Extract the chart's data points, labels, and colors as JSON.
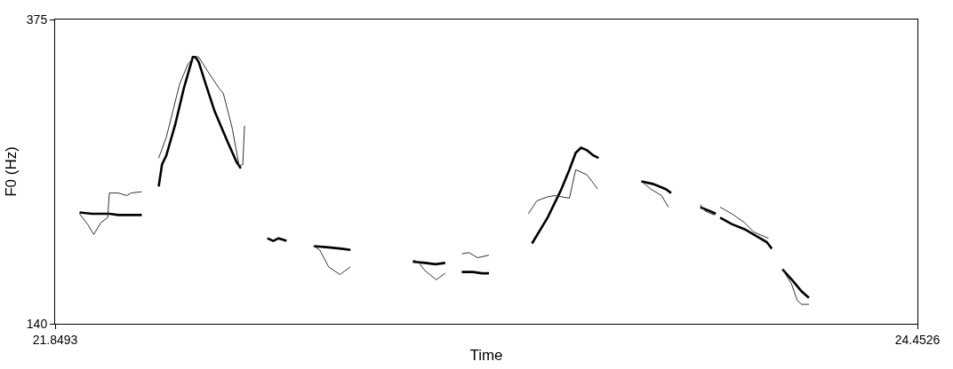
{
  "chart_data": {
    "type": "line",
    "xlabel": "Time",
    "ylabel": "F0 (Hz)",
    "xlim": [
      21.8493,
      24.4526
    ],
    "ylim": [
      140,
      375
    ],
    "xticks": [
      21.8493,
      24.4526
    ],
    "yticks": [
      140,
      375
    ],
    "marker": "none",
    "line_style": "solid",
    "series": [
      {
        "color": "#000000",
        "x": [
          21.923,
          21.96,
          22.013,
          22.04,
          22.079,
          22.111,
          null,
          22.162,
          22.172,
          22.185,
          22.212,
          22.238,
          22.265,
          22.273,
          22.283,
          22.304,
          22.331,
          22.371,
          22.397,
          22.41,
          null,
          22.49,
          22.508,
          22.524,
          22.548,
          null,
          22.63,
          22.675,
          22.714,
          22.741,
          null,
          22.929,
          22.966,
          22.998,
          23.027,
          null,
          23.077,
          23.111,
          23.138,
          23.159,
          null,
          23.289,
          23.336,
          23.376,
          23.402,
          23.421,
          23.437,
          23.455,
          23.474,
          23.49,
          null,
          23.619,
          23.654,
          23.693,
          23.709,
          null,
          23.797,
          23.826,
          23.844,
          null,
          23.857,
          23.892,
          23.931,
          23.971,
          23.998,
          24.013,
          null,
          24.045,
          24.077,
          24.103,
          24.125
        ],
        "values": [
          226,
          225,
          225,
          224,
          224,
          224,
          null,
          246,
          263,
          270,
          294,
          322,
          346,
          346,
          342,
          325,
          304,
          280,
          265,
          260,
          null,
          206,
          204,
          206,
          204,
          null,
          200,
          199,
          198,
          197,
          null,
          188,
          187,
          186,
          187,
          null,
          180,
          180,
          179,
          179,
          null,
          202,
          222,
          243,
          259,
          272,
          276,
          274,
          270,
          268,
          null,
          250,
          248,
          244,
          241,
          null,
          230,
          227,
          225,
          null,
          222,
          217,
          213,
          207,
          203,
          198,
          null,
          182,
          173,
          165,
          160
        ]
      },
      {
        "color": "#333333",
        "x": [
          21.923,
          21.947,
          21.966,
          21.987,
          22.008,
          22.013,
          22.04,
          22.066,
          22.079,
          22.111,
          null,
          22.162,
          22.185,
          22.225,
          22.251,
          22.27,
          22.283,
          22.31,
          22.344,
          22.357,
          22.384,
          22.405,
          22.416,
          22.421,
          null,
          22.63,
          22.648,
          22.675,
          22.709,
          22.741,
          null,
          22.931,
          22.945,
          22.966,
          23.0,
          23.027,
          null,
          23.077,
          23.098,
          23.125,
          23.159,
          null,
          23.278,
          23.304,
          23.336,
          23.357,
          23.379,
          23.402,
          23.421,
          23.455,
          23.476,
          23.487,
          null,
          23.619,
          23.648,
          23.68,
          23.701,
          null,
          23.797,
          23.812,
          23.839,
          null,
          23.857,
          23.892,
          23.931,
          23.958,
          24.003,
          null,
          24.045,
          24.072,
          24.09,
          24.103,
          24.125
        ],
        "values": [
          225,
          217,
          209,
          218,
          222,
          241,
          241,
          239,
          241,
          242,
          null,
          268,
          284,
          325,
          341,
          346,
          346,
          335,
          322,
          318,
          291,
          262,
          263,
          293,
          null,
          200,
          197,
          184,
          178,
          184,
          null,
          189,
          188,
          181,
          174,
          179,
          null,
          194,
          195,
          191,
          193,
          null,
          225,
          235,
          238,
          239,
          238,
          237,
          259,
          255,
          248,
          244,
          null,
          250,
          244,
          239,
          230,
          null,
          232,
          227,
          224,
          null,
          230,
          225,
          218,
          211,
          206,
          null,
          182,
          171,
          158,
          155,
          155
        ]
      }
    ]
  }
}
